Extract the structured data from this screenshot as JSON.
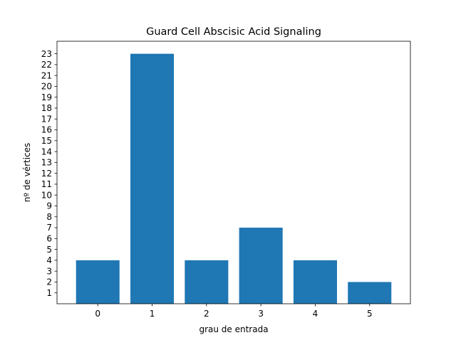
{
  "chart_data": {
    "type": "bar",
    "title": "Guard Cell Abscisic Acid Signaling",
    "xlabel": "grau de entrada",
    "ylabel": "nº de vértices",
    "categories": [
      "0",
      "1",
      "2",
      "3",
      "4",
      "5"
    ],
    "x": [
      0,
      1,
      2,
      3,
      4,
      5
    ],
    "values": [
      4,
      23,
      4,
      7,
      4,
      2
    ],
    "xlim": [
      -0.75,
      5.75
    ],
    "ylim": [
      0,
      24.15
    ],
    "yticks": [
      1,
      2,
      3,
      4,
      5,
      6,
      7,
      8,
      9,
      10,
      11,
      12,
      13,
      14,
      15,
      16,
      17,
      18,
      19,
      20,
      21,
      22,
      23
    ],
    "bar_color": "#1f77b4",
    "grid": false,
    "legend": false
  }
}
